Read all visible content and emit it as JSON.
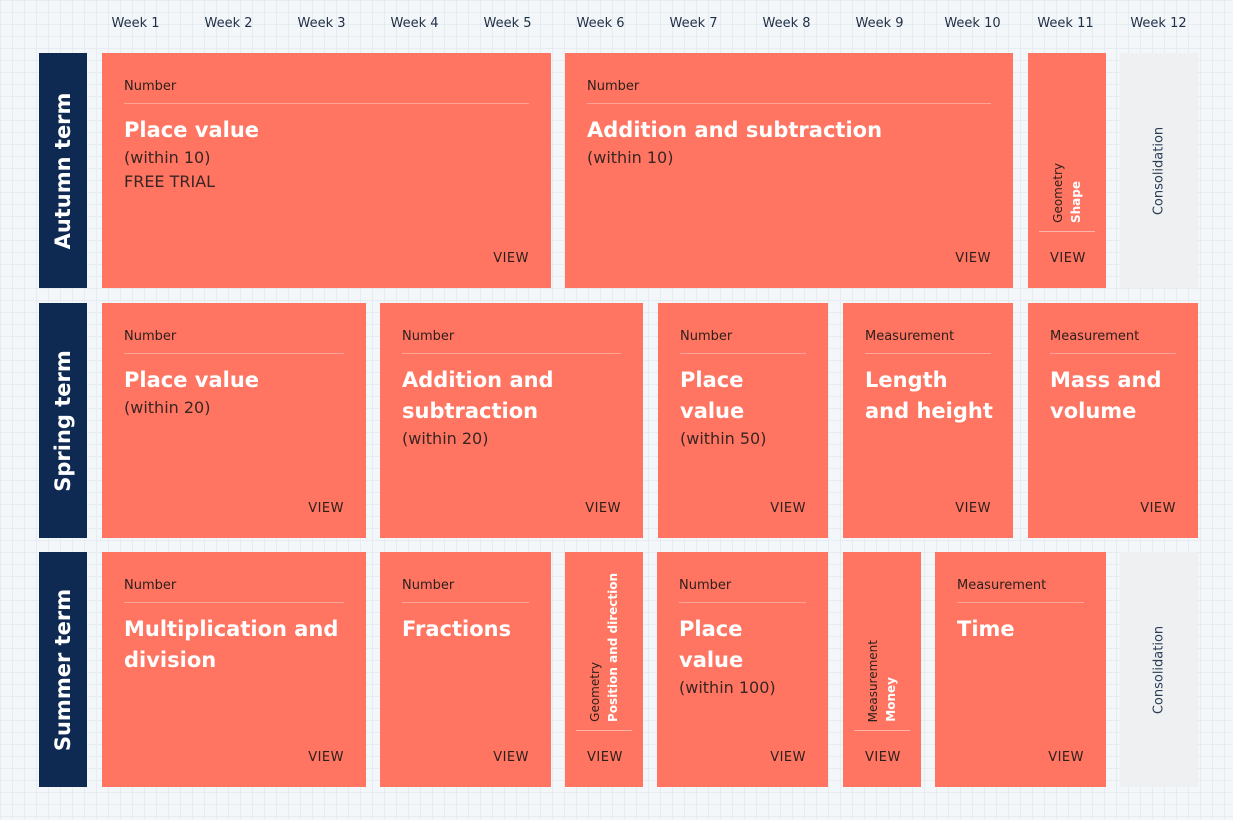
{
  "weeks": [
    "Week 1",
    "Week 2",
    "Week 3",
    "Week 4",
    "Week 5",
    "Week 6",
    "Week 7",
    "Week 8",
    "Week 9",
    "Week 10",
    "Week 11",
    "Week 12"
  ],
  "terms": {
    "autumn": "Autumn term",
    "spring": "Spring term",
    "summer": "Summer term"
  },
  "view_label": "VIEW",
  "autumn": {
    "place_value": {
      "category": "Number",
      "title": "Place value",
      "sub": "(within 10)",
      "extra": "FREE TRIAL"
    },
    "add_sub": {
      "category": "Number",
      "title": "Addition and subtraction",
      "sub": "(within 10)"
    },
    "shape": {
      "category": "Geometry",
      "title": "Shape"
    },
    "consolidation": "Consolidation"
  },
  "spring": {
    "place_value_20": {
      "category": "Number",
      "title": "Place value",
      "sub": "(within 20)"
    },
    "add_sub_20": {
      "category": "Number",
      "title": "Addition and subtraction",
      "sub": "(within 20)"
    },
    "place_value_50": {
      "category": "Number",
      "title": "Place value",
      "sub": "(within 50)"
    },
    "length_height": {
      "category": "Measurement",
      "title": "Length and height"
    },
    "mass_volume": {
      "category": "Measurement",
      "title": "Mass and volume"
    }
  },
  "summer": {
    "mult_div": {
      "category": "Number",
      "title": "Multiplication and division"
    },
    "fractions": {
      "category": "Number",
      "title": "Fractions"
    },
    "position": {
      "category": "Geometry",
      "title": "Position and direction"
    },
    "place_value_100": {
      "category": "Number",
      "title": "Place value",
      "sub": "(within 100)"
    },
    "money": {
      "category": "Measurement",
      "title": "Money"
    },
    "time": {
      "category": "Measurement",
      "title": "Time"
    },
    "consolidation": "Consolidation"
  },
  "colors": {
    "block": "#ff7562",
    "term": "#0e2a52",
    "consolidation": "#eef0f2",
    "background": "#f4f7fa"
  }
}
